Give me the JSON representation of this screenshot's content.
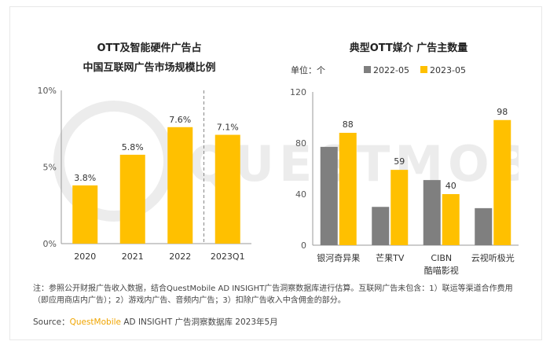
{
  "chart_data": [
    {
      "type": "bar",
      "title_line1": "OTT及智能硬件广告占",
      "title_line2": "中国互联网广告市场规模比例",
      "categories": [
        "2020",
        "2021",
        "2022",
        "2023Q1"
      ],
      "values": [
        3.8,
        5.8,
        7.6,
        7.1
      ],
      "value_labels": [
        "3.8%",
        "5.8%",
        "7.6%",
        "7.1%"
      ],
      "ylim": [
        0,
        10
      ],
      "yticks": [
        0,
        5,
        10
      ],
      "ytick_labels": [
        "0%",
        "5%",
        "10%"
      ],
      "separator_before": "2023Q1",
      "color": "#ffc000"
    },
    {
      "type": "bar",
      "title": "典型OTT媒介 广告主数量",
      "unit_label": "单位：个",
      "categories": [
        "银河奇异果",
        "芒果TV",
        "CIBN\n酷喵影视",
        "云视听极光"
      ],
      "category_lines": [
        [
          "银河奇异果"
        ],
        [
          "芒果TV"
        ],
        [
          "CIBN",
          "酷喵影视"
        ],
        [
          "云视听极光"
        ]
      ],
      "series": [
        {
          "name": "2022-05",
          "values": [
            77,
            30,
            51,
            29
          ],
          "color": "#7f7f7f",
          "show_labels": false
        },
        {
          "name": "2023-05",
          "values": [
            88,
            59,
            40,
            98
          ],
          "color": "#ffc000",
          "show_labels": true
        }
      ],
      "ylim": [
        0,
        120
      ],
      "yticks": [
        0,
        40,
        80,
        120
      ],
      "ytick_labels": [
        "0",
        "40",
        "80",
        "120"
      ]
    }
  ],
  "note": "注：参照公开财报广告收入数据，结合QuestMobile AD INSIGHT广告洞察数据库进行估算。互联网广告未包含：1）联运等渠道合作费用（即应用商店内广告）；2）游戏内广告、音频内广告；3）扣除广告收入中含佣金的部分。",
  "source": {
    "prefix": "Source：",
    "brand": "QuestMobile",
    "rest": " AD INSIGHT 广告洞察数据库 2023年5月"
  },
  "watermark": "QUESTMOBILE",
  "colors": {
    "accent": "#ffc000",
    "gray": "#7f7f7f",
    "brand": "#f0a500"
  }
}
